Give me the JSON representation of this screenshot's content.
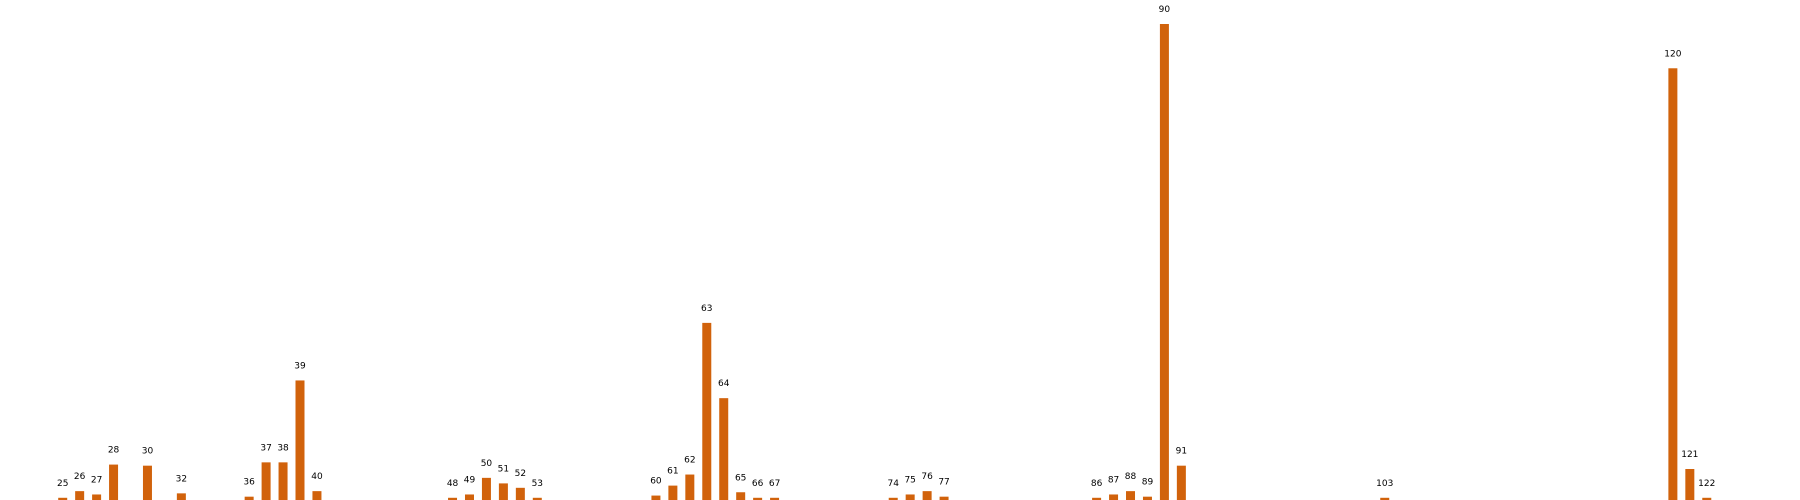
{
  "chart_data": {
    "type": "bar",
    "title": "",
    "xlabel": "",
    "ylabel": "",
    "bar_color": "#d1620b",
    "grid": false,
    "show_axes": false,
    "points": [
      {
        "x": 25,
        "value": 1
      },
      {
        "x": 26,
        "value": 4
      },
      {
        "x": 27,
        "value": 2.5
      },
      {
        "x": 28,
        "value": 16
      },
      {
        "x": 30,
        "value": 15.5
      },
      {
        "x": 32,
        "value": 3
      },
      {
        "x": 36,
        "value": 1.5
      },
      {
        "x": 37,
        "value": 17
      },
      {
        "x": 38,
        "value": 17
      },
      {
        "x": 39,
        "value": 54
      },
      {
        "x": 40,
        "value": 4
      },
      {
        "x": 48,
        "value": 1
      },
      {
        "x": 49,
        "value": 2.5
      },
      {
        "x": 50,
        "value": 10
      },
      {
        "x": 51,
        "value": 7.5
      },
      {
        "x": 52,
        "value": 5.5
      },
      {
        "x": 53,
        "value": 1
      },
      {
        "x": 60,
        "value": 2
      },
      {
        "x": 61,
        "value": 6.5
      },
      {
        "x": 62,
        "value": 11.5
      },
      {
        "x": 63,
        "value": 80
      },
      {
        "x": 64,
        "value": 46
      },
      {
        "x": 65,
        "value": 3.5
      },
      {
        "x": 66,
        "value": 1
      },
      {
        "x": 67,
        "value": 1
      },
      {
        "x": 74,
        "value": 1
      },
      {
        "x": 75,
        "value": 2.5
      },
      {
        "x": 76,
        "value": 4
      },
      {
        "x": 77,
        "value": 1.5
      },
      {
        "x": 86,
        "value": 1
      },
      {
        "x": 87,
        "value": 2.5
      },
      {
        "x": 88,
        "value": 4
      },
      {
        "x": 89,
        "value": 1.5
      },
      {
        "x": 90,
        "value": 215
      },
      {
        "x": 91,
        "value": 15.5
      },
      {
        "x": 103,
        "value": 1
      },
      {
        "x": 120,
        "value": 195
      },
      {
        "x": 121,
        "value": 14
      },
      {
        "x": 122,
        "value": 1
      }
    ],
    "xlim": [
      21.3,
      127.5
    ],
    "ylim": [
      0,
      215
    ]
  }
}
